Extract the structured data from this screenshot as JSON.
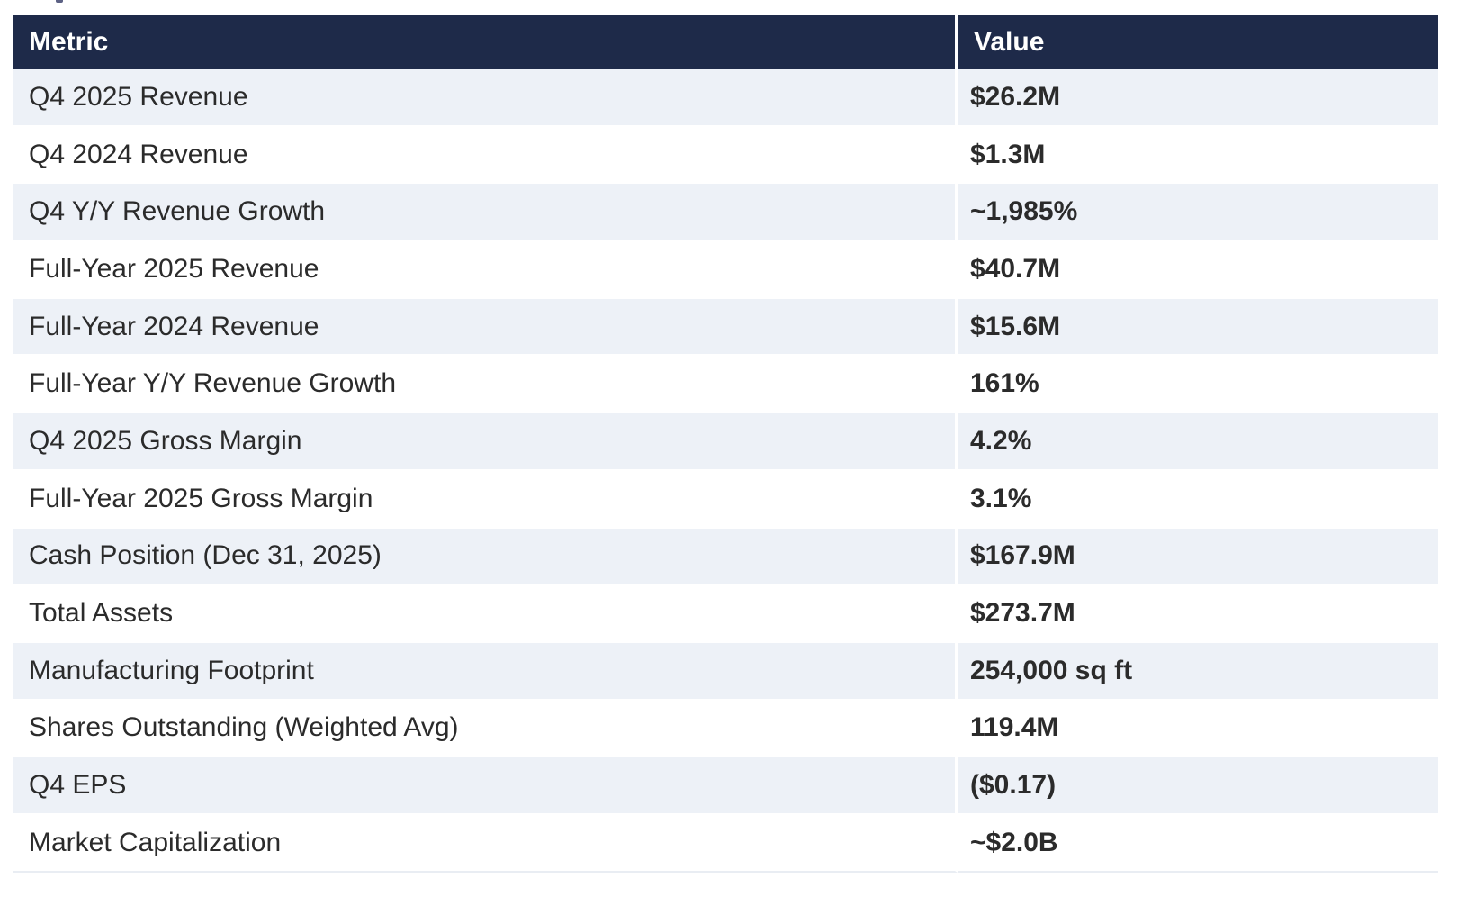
{
  "chart_data": {
    "type": "table",
    "columns": [
      "Metric",
      "Value"
    ],
    "rows": [
      {
        "metric": "Q4 2025 Revenue",
        "value": "$26.2M"
      },
      {
        "metric": "Q4 2024 Revenue",
        "value": "$1.3M"
      },
      {
        "metric": "Q4 Y/Y Revenue Growth",
        "value": "~1,985%"
      },
      {
        "metric": "Full-Year 2025 Revenue",
        "value": "$40.7M"
      },
      {
        "metric": "Full-Year 2024 Revenue",
        "value": "$15.6M"
      },
      {
        "metric": "Full-Year Y/Y Revenue Growth",
        "value": "161%"
      },
      {
        "metric": "Q4 2025 Gross Margin",
        "value": "4.2%"
      },
      {
        "metric": "Full-Year 2025 Gross Margin",
        "value": "3.1%"
      },
      {
        "metric": "Cash Position (Dec 31, 2025)",
        "value": "$167.9M"
      },
      {
        "metric": "Total Assets",
        "value": "$273.7M"
      },
      {
        "metric": "Manufacturing Footprint",
        "value": "254,000 sq ft"
      },
      {
        "metric": "Shares Outstanding (Weighted Avg)",
        "value": "119.4M"
      },
      {
        "metric": "Q4 EPS",
        "value": "($0.17)"
      },
      {
        "metric": "Market Capitalization",
        "value": "~$2.0B"
      }
    ],
    "layout": {
      "header_row": true,
      "zebra_striping": true,
      "first_data_row_shaded": true
    }
  },
  "colors": {
    "header_bg": "#1e2a49",
    "header_text": "#ffffff",
    "row_alt_bg": "#edf1f7",
    "row_bg": "#ffffff",
    "body_text": "#2b2b2b",
    "divider": "#ffffff",
    "bottom_border": "#e9edf3",
    "fragment_color": "#5c6184"
  }
}
